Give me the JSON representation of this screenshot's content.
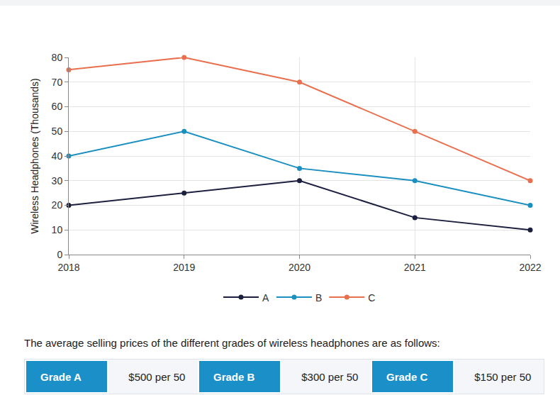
{
  "chart_data": {
    "type": "line",
    "y_label": "Wireless Headphones (Thousands)",
    "x": [
      2018,
      2019,
      2020,
      2021,
      2022
    ],
    "xlim": [
      2018,
      2022
    ],
    "xticks": [
      2018,
      2019,
      2020,
      2021,
      2022
    ],
    "ylim": [
      0,
      80
    ],
    "yticks": [
      0,
      10,
      20,
      30,
      40,
      50,
      60,
      70,
      80
    ],
    "grid": true,
    "legend": "bottom",
    "marker": "circle",
    "line_style": "solid",
    "series": [
      {
        "name": "A",
        "color": "#1c1f3d",
        "values": [
          20,
          25,
          30,
          15,
          10
        ]
      },
      {
        "name": "B",
        "color": "#1a8fc0",
        "values": [
          40,
          50,
          35,
          30,
          20
        ]
      },
      {
        "name": "C",
        "color": "#e8704f",
        "values": [
          75,
          80,
          70,
          50,
          30
        ]
      }
    ]
  },
  "prices": {
    "caption": "The average selling prices of the different grades of wireless headphones are as follows:",
    "rows": [
      {
        "grade": "Grade A",
        "price": "$500 per 50"
      },
      {
        "grade": "Grade B",
        "price": "$300 per 50"
      },
      {
        "grade": "Grade C",
        "price": "$150 per 50"
      }
    ]
  }
}
